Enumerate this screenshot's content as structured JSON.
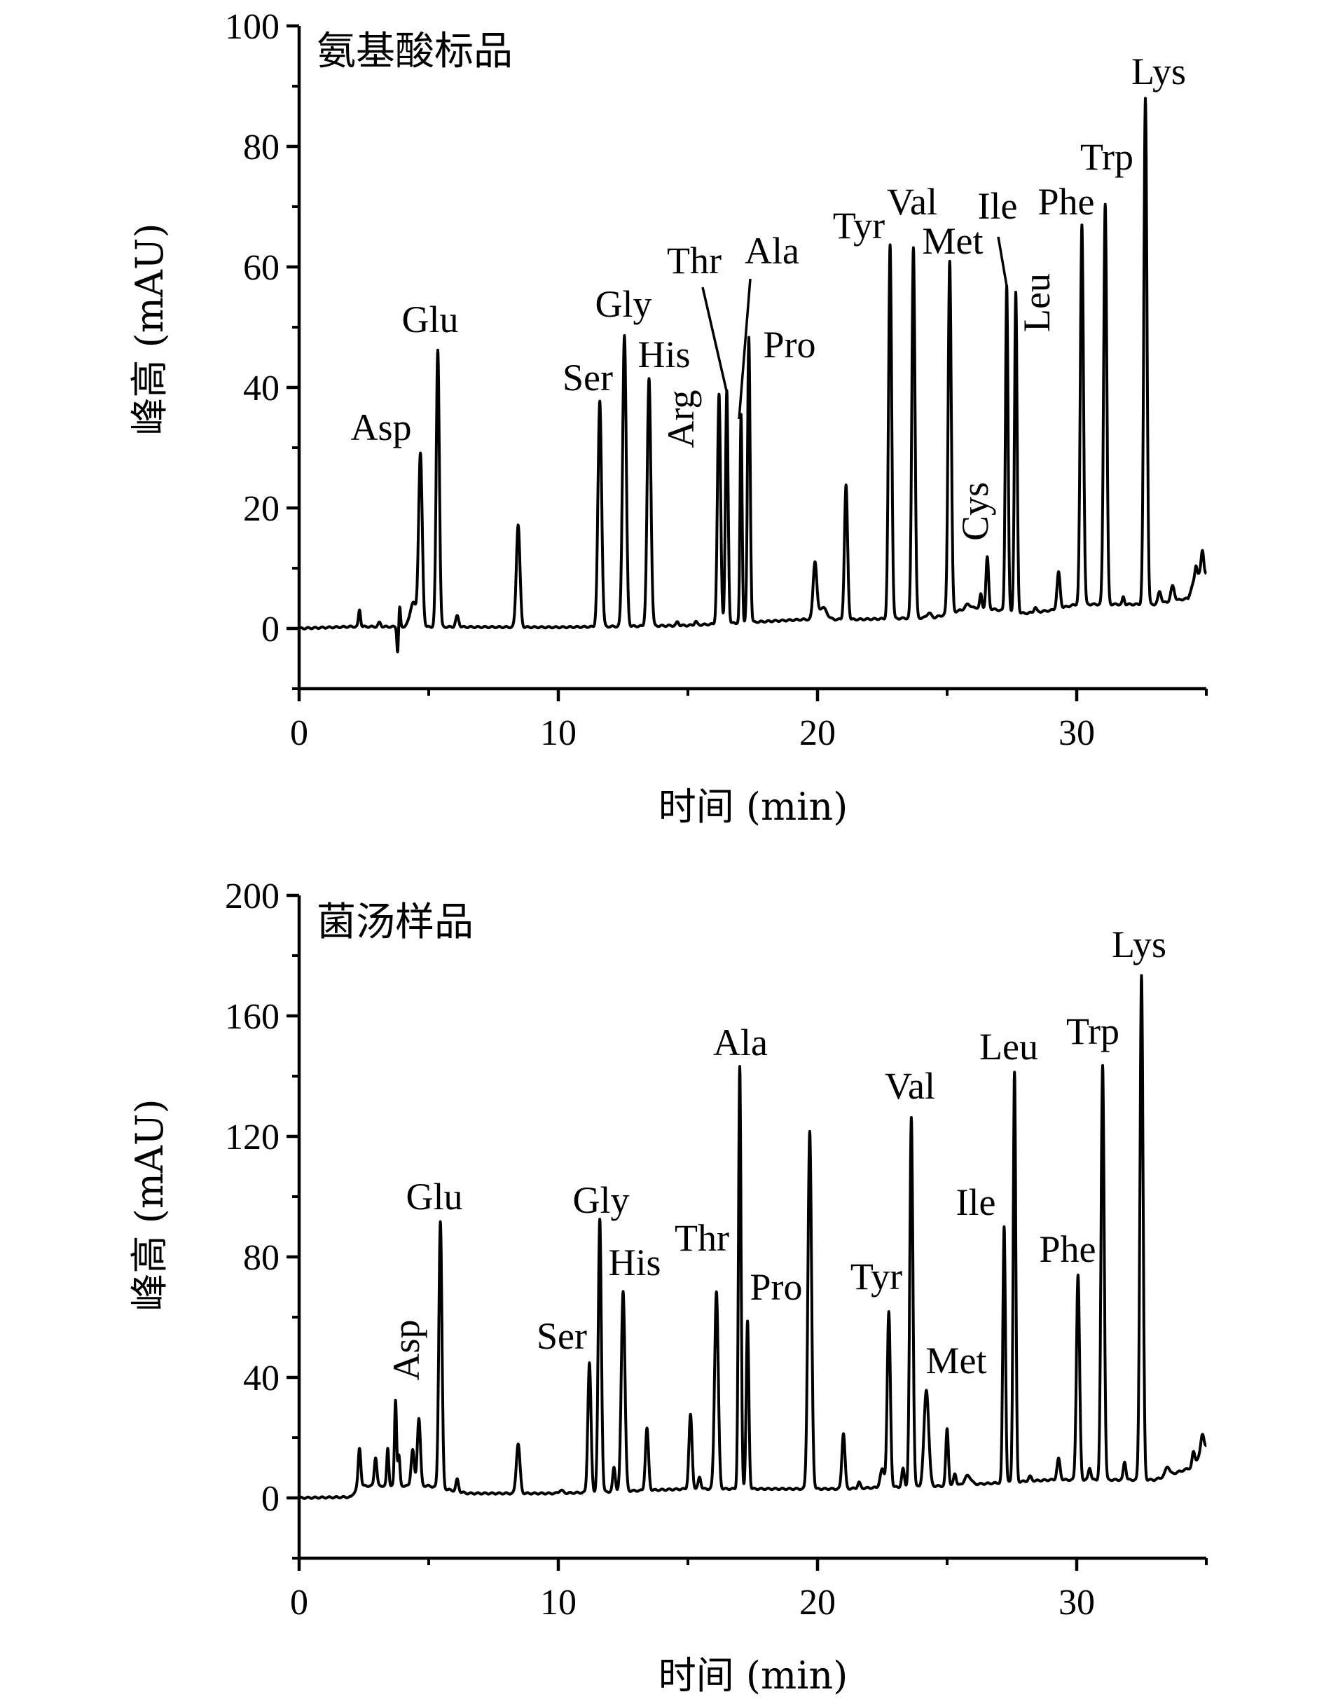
{
  "colors": {
    "trace": "#000000",
    "axis": "#000000",
    "background": "#ffffff"
  },
  "chart_data": [
    {
      "type": "line",
      "title": "氨基酸标品",
      "xlabel": "时间 (min)",
      "ylabel": "峰高 (mAU)",
      "xlim": [
        0,
        35
      ],
      "ylim": [
        -10,
        100
      ],
      "xticks": [
        0,
        10,
        20,
        30
      ],
      "xtick_labels": [
        "0",
        "10",
        "20",
        "30"
      ],
      "x_minor_ticks": [
        5,
        15,
        25,
        35
      ],
      "yticks": [
        0,
        20,
        40,
        60,
        80,
        100
      ],
      "ytick_labels": [
        "0",
        "20",
        "40",
        "60",
        "80",
        "100"
      ],
      "y_minor_ticks": [
        -10,
        10,
        30,
        50,
        70,
        90
      ],
      "grid": false,
      "baseline": [
        [
          0,
          0
        ],
        [
          2,
          0.3
        ],
        [
          10,
          0.2
        ],
        [
          15,
          0.5
        ],
        [
          19.5,
          1.5
        ],
        [
          21.5,
          1.5
        ],
        [
          24.5,
          1.8
        ],
        [
          25.5,
          3
        ],
        [
          26.2,
          3.5
        ],
        [
          28,
          2.5
        ],
        [
          29,
          3
        ],
        [
          30,
          4
        ],
        [
          33,
          4
        ],
        [
          34.3,
          5
        ],
        [
          34.6,
          9
        ],
        [
          35,
          9
        ]
      ],
      "peaks": [
        {
          "t": 2.33,
          "h": 2.8,
          "w": 0.04
        },
        {
          "t": 3.1,
          "h": 0.7,
          "w": 0.05
        },
        {
          "t": 3.8,
          "h": -4.2,
          "w": 0.03
        },
        {
          "t": 3.88,
          "h": 3.3,
          "w": 0.03
        },
        {
          "t": 4.4,
          "h": 4.0,
          "w": 0.12
        },
        {
          "t": 4.68,
          "h": 28.5,
          "w": 0.07,
          "label": "Asp"
        },
        {
          "t": 5.35,
          "h": 46.0,
          "w": 0.06,
          "label": "Glu"
        },
        {
          "t": 6.1,
          "h": 1.8,
          "w": 0.06
        },
        {
          "t": 8.45,
          "h": 17.0,
          "w": 0.07
        },
        {
          "t": 11.6,
          "h": 37.4,
          "w": 0.07,
          "label": "Ser"
        },
        {
          "t": 12.55,
          "h": 48.3,
          "w": 0.07,
          "label": "Gly"
        },
        {
          "t": 13.5,
          "h": 41.0,
          "w": 0.07,
          "label": "His"
        },
        {
          "t": 14.6,
          "h": 0.6,
          "w": 0.05
        },
        {
          "t": 15.3,
          "h": 0.6,
          "w": 0.05
        },
        {
          "t": 16.2,
          "h": 38.0,
          "w": 0.06,
          "label": "Arg"
        },
        {
          "t": 16.5,
          "h": 38.6,
          "w": 0.05,
          "label": "Thr"
        },
        {
          "t": 17.05,
          "h": 34.5,
          "w": 0.04,
          "label": "Ala"
        },
        {
          "t": 17.35,
          "h": 47.3,
          "w": 0.05,
          "label": "Pro"
        },
        {
          "t": 19.9,
          "h": 9.4,
          "w": 0.07
        },
        {
          "t": 20.2,
          "h": 2.0,
          "w": 0.15
        },
        {
          "t": 21.1,
          "h": 22.2,
          "w": 0.06
        },
        {
          "t": 22.8,
          "h": 62.0,
          "w": 0.06,
          "label": "Tyr"
        },
        {
          "t": 23.7,
          "h": 61.6,
          "w": 0.06,
          "label": "Val"
        },
        {
          "t": 24.3,
          "h": 0.8,
          "w": 0.08
        },
        {
          "t": 25.1,
          "h": 58.5,
          "w": 0.06,
          "label": "Met"
        },
        {
          "t": 25.8,
          "h": 0.8,
          "w": 0.1
        },
        {
          "t": 26.3,
          "h": 2.2,
          "w": 0.04
        },
        {
          "t": 26.55,
          "h": 8.5,
          "w": 0.05,
          "label": "Cys"
        },
        {
          "t": 27.3,
          "h": 54.0,
          "w": 0.05,
          "label": "Ile"
        },
        {
          "t": 27.65,
          "h": 53.0,
          "w": 0.05,
          "label": "Leu"
        },
        {
          "t": 28.4,
          "h": 0.8,
          "w": 0.05
        },
        {
          "t": 29.3,
          "h": 6.0,
          "w": 0.06
        },
        {
          "t": 30.2,
          "h": 63.0,
          "w": 0.06,
          "label": "Phe"
        },
        {
          "t": 31.1,
          "h": 66.5,
          "w": 0.06,
          "label": "Trp"
        },
        {
          "t": 31.8,
          "h": 1.2,
          "w": 0.04
        },
        {
          "t": 32.65,
          "h": 84.0,
          "w": 0.06,
          "label": "Lys"
        },
        {
          "t": 33.2,
          "h": 2.0,
          "w": 0.06
        },
        {
          "t": 33.7,
          "h": 2.5,
          "w": 0.07
        },
        {
          "t": 34.6,
          "h": 1.5,
          "w": 0.04
        },
        {
          "t": 34.85,
          "h": 4.0,
          "w": 0.05
        }
      ],
      "labels": [
        "Asp",
        "Glu",
        "Ser",
        "Gly",
        "His",
        "Arg",
        "Thr",
        "Ala",
        "Pro",
        "Tyr",
        "Val",
        "Met",
        "Cys",
        "Ile",
        "Leu",
        "Phe",
        "Trp",
        "Lys"
      ]
    },
    {
      "type": "line",
      "title": "菌汤样品",
      "xlabel": "时间 (min)",
      "ylabel": "峰高 (mAU)",
      "xlim": [
        0,
        35
      ],
      "ylim": [
        -20,
        200
      ],
      "xticks": [
        0,
        10,
        20,
        30
      ],
      "xtick_labels": [
        "0",
        "10",
        "20",
        "30"
      ],
      "x_minor_ticks": [
        5,
        15,
        25,
        35
      ],
      "yticks": [
        0,
        40,
        80,
        120,
        160,
        200
      ],
      "ytick_labels": [
        "0",
        "40",
        "80",
        "120",
        "160",
        "200"
      ],
      "y_minor_ticks": [
        -20,
        20,
        60,
        100,
        140,
        180
      ],
      "grid": false,
      "baseline": [
        [
          0,
          0
        ],
        [
          2,
          0.3
        ],
        [
          2.3,
          4
        ],
        [
          5,
          4
        ],
        [
          6.5,
          1.5
        ],
        [
          10,
          1.5
        ],
        [
          15,
          3
        ],
        [
          19.4,
          3
        ],
        [
          21,
          3
        ],
        [
          22.5,
          3.5
        ],
        [
          25,
          4
        ],
        [
          27,
          5
        ],
        [
          29,
          6
        ],
        [
          33,
          6
        ],
        [
          34.4,
          10
        ],
        [
          35,
          17
        ]
      ],
      "peaks": [
        {
          "t": 2.33,
          "h": 12.5,
          "w": 0.05
        },
        {
          "t": 2.95,
          "h": 9.5,
          "w": 0.05
        },
        {
          "t": 3.42,
          "h": 12.5,
          "w": 0.04
        },
        {
          "t": 3.72,
          "h": 28.5,
          "w": 0.04
        },
        {
          "t": 3.85,
          "h": 10.0,
          "w": 0.04
        },
        {
          "t": 4.38,
          "h": 12.0,
          "w": 0.06
        },
        {
          "t": 4.62,
          "h": 22.5,
          "w": 0.06,
          "label": "Asp"
        },
        {
          "t": 5.45,
          "h": 88.5,
          "w": 0.06,
          "label": "Glu"
        },
        {
          "t": 6.1,
          "h": 4.0,
          "w": 0.05
        },
        {
          "t": 8.45,
          "h": 16.5,
          "w": 0.07
        },
        {
          "t": 10.1,
          "h": 1.0,
          "w": 0.08
        },
        {
          "t": 11.2,
          "h": 43.0,
          "w": 0.06,
          "label": "Ser"
        },
        {
          "t": 11.6,
          "h": 90.5,
          "w": 0.06,
          "label": "Gly"
        },
        {
          "t": 12.15,
          "h": 8.0,
          "w": 0.05
        },
        {
          "t": 12.5,
          "h": 66.5,
          "w": 0.07,
          "label": "His"
        },
        {
          "t": 13.42,
          "h": 20.5,
          "w": 0.06
        },
        {
          "t": 15.1,
          "h": 24.5,
          "w": 0.06
        },
        {
          "t": 15.45,
          "h": 4.0,
          "w": 0.05
        },
        {
          "t": 16.1,
          "h": 65.5,
          "w": 0.07,
          "label": "Thr"
        },
        {
          "t": 17.0,
          "h": 140.0,
          "w": 0.05,
          "label": "Ala"
        },
        {
          "t": 17.3,
          "h": 55.5,
          "w": 0.05,
          "label": "Pro"
        },
        {
          "t": 19.7,
          "h": 118.5,
          "w": 0.07
        },
        {
          "t": 21.0,
          "h": 18.5,
          "w": 0.06
        },
        {
          "t": 21.6,
          "h": 2.0,
          "w": 0.05
        },
        {
          "t": 22.5,
          "h": 6.0,
          "w": 0.08
        },
        {
          "t": 22.75,
          "h": 58.0,
          "w": 0.06,
          "label": "Tyr"
        },
        {
          "t": 23.3,
          "h": 6.0,
          "w": 0.05
        },
        {
          "t": 23.62,
          "h": 122.5,
          "w": 0.06,
          "label": "Val"
        },
        {
          "t": 24.2,
          "h": 32.0,
          "w": 0.09,
          "label": "Met"
        },
        {
          "t": 25.0,
          "h": 19.0,
          "w": 0.05
        },
        {
          "t": 25.3,
          "h": 4.0,
          "w": 0.05
        },
        {
          "t": 25.8,
          "h": 3.0,
          "w": 0.12
        },
        {
          "t": 27.2,
          "h": 85.0,
          "w": 0.05,
          "label": "Ile"
        },
        {
          "t": 27.6,
          "h": 136.0,
          "w": 0.05,
          "label": "Leu"
        },
        {
          "t": 28.2,
          "h": 1.5,
          "w": 0.06
        },
        {
          "t": 29.3,
          "h": 7.0,
          "w": 0.06
        },
        {
          "t": 30.05,
          "h": 68.0,
          "w": 0.06,
          "label": "Phe"
        },
        {
          "t": 30.5,
          "h": 4.0,
          "w": 0.05
        },
        {
          "t": 31.0,
          "h": 137.5,
          "w": 0.06,
          "label": "Trp"
        },
        {
          "t": 31.85,
          "h": 6.0,
          "w": 0.05
        },
        {
          "t": 32.5,
          "h": 167.5,
          "w": 0.06,
          "label": "Lys"
        },
        {
          "t": 33.5,
          "h": 3.0,
          "w": 0.08
        },
        {
          "t": 34.5,
          "h": 4.0,
          "w": 0.05
        },
        {
          "t": 34.85,
          "h": 6.0,
          "w": 0.06
        }
      ],
      "labels": [
        "Asp",
        "Glu",
        "Ser",
        "Gly",
        "His",
        "Thr",
        "Ala",
        "Pro",
        "Tyr",
        "Val",
        "Met",
        "Ile",
        "Leu",
        "Phe",
        "Trp",
        "Lys"
      ]
    }
  ]
}
